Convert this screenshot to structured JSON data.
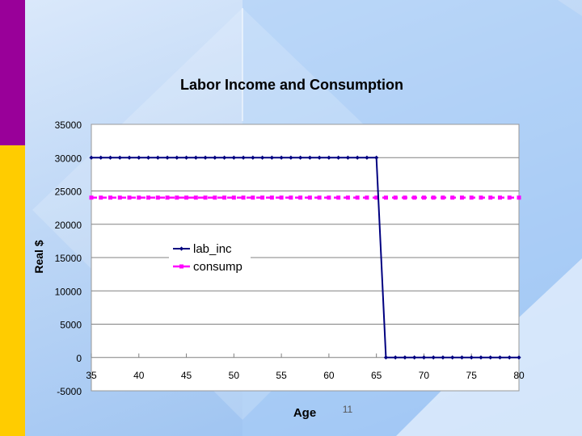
{
  "slide": {
    "number": "11",
    "accent_purple": "#990099",
    "accent_yellow": "#ffcc00"
  },
  "chart_data": {
    "type": "line",
    "title": "Labor Income and Consumption",
    "xlabel": "Age",
    "ylabel": "Real $",
    "xlim": [
      35,
      80
    ],
    "ylim": [
      -5000,
      35000
    ],
    "x_ticks": [
      "35",
      "40",
      "45",
      "50",
      "55",
      "60",
      "65",
      "70",
      "75",
      "80"
    ],
    "y_ticks": [
      "35000",
      "30000",
      "25000",
      "20000",
      "15000",
      "10000",
      "5000",
      "0",
      "-5000"
    ],
    "grid": true,
    "legend_position": "center-left",
    "series": [
      {
        "name": "lab_inc",
        "color": "#000080",
        "marker": "diamond",
        "x": [
          35,
          36,
          37,
          38,
          39,
          40,
          41,
          42,
          43,
          44,
          45,
          46,
          47,
          48,
          49,
          50,
          51,
          52,
          53,
          54,
          55,
          56,
          57,
          58,
          59,
          60,
          61,
          62,
          63,
          64,
          65,
          66,
          67,
          68,
          69,
          70,
          71,
          72,
          73,
          74,
          75,
          76,
          77,
          78,
          79,
          80
        ],
        "values": [
          30000,
          30000,
          30000,
          30000,
          30000,
          30000,
          30000,
          30000,
          30000,
          30000,
          30000,
          30000,
          30000,
          30000,
          30000,
          30000,
          30000,
          30000,
          30000,
          30000,
          30000,
          30000,
          30000,
          30000,
          30000,
          30000,
          30000,
          30000,
          30000,
          30000,
          30000,
          0,
          0,
          0,
          0,
          0,
          0,
          0,
          0,
          0,
          0,
          0,
          0,
          0,
          0,
          0
        ]
      },
      {
        "name": "consump",
        "color": "#ff00ff",
        "marker": "square",
        "x": [
          35,
          36,
          37,
          38,
          39,
          40,
          41,
          42,
          43,
          44,
          45,
          46,
          47,
          48,
          49,
          50,
          51,
          52,
          53,
          54,
          55,
          56,
          57,
          58,
          59,
          60,
          61,
          62,
          63,
          64,
          65,
          66,
          67,
          68,
          69,
          70,
          71,
          72,
          73,
          74,
          75,
          76,
          77,
          78,
          79,
          80
        ],
        "values": [
          24000,
          24000,
          24000,
          24000,
          24000,
          24000,
          24000,
          24000,
          24000,
          24000,
          24000,
          24000,
          24000,
          24000,
          24000,
          24000,
          24000,
          24000,
          24000,
          24000,
          24000,
          24000,
          24000,
          24000,
          24000,
          24000,
          24000,
          24000,
          24000,
          24000,
          24000,
          24000,
          24000,
          24000,
          24000,
          24000,
          24000,
          24000,
          24000,
          24000,
          24000,
          24000,
          24000,
          24000,
          24000,
          24000
        ]
      }
    ]
  }
}
